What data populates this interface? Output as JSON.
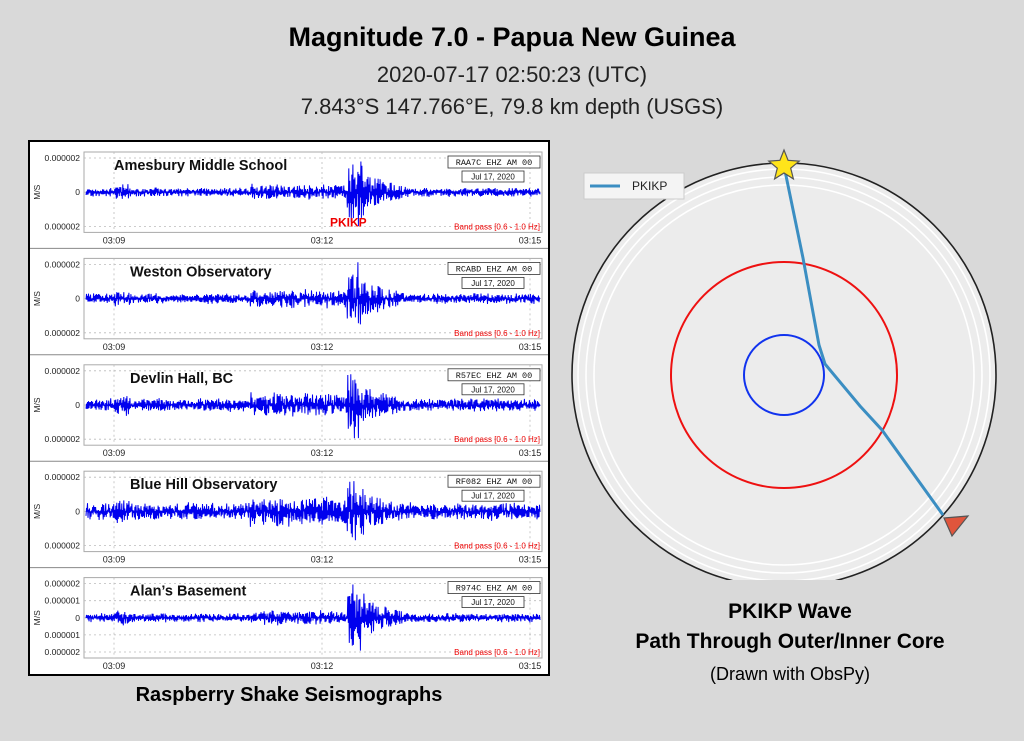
{
  "header": {
    "title": "Magnitude 7.0 - Papua New Guinea",
    "subtitle_time": "2020-07-17 02:50:23 (UTC)",
    "subtitle_location": "7.843°S 147.766°E, 79.8 km depth (USGS)"
  },
  "chart_data": [
    {
      "type": "line",
      "caption": "Raspberry Shake Seismographs",
      "ylabel": "M/S",
      "line_color": "#0000ee",
      "x_ticks": [
        "03:09",
        "03:12",
        "03:15"
      ],
      "date": "Jul 17, 2020",
      "filter": "Band pass [0.6 - 1.0 Hz]",
      "phase_label": "PKIKP",
      "phase_color": "#ee0000",
      "panels": [
        {
          "name": "Amesbury Middle School",
          "channel": "RAA7C EHZ AM 00",
          "y_ticks": [
            "0.000002",
            "0",
            "0.000002"
          ],
          "arrival_amplitude": 1.0,
          "noise": 0.12
        },
        {
          "name": "Weston Observatory",
          "channel": "RCABD EHZ AM 00",
          "y_ticks": [
            "0.000002",
            "0",
            "0.000002"
          ],
          "arrival_amplitude": 0.95,
          "noise": 0.14
        },
        {
          "name": "Devlin Hall, BC",
          "channel": "R57EC EHZ AM 00",
          "y_ticks": [
            "0.000002",
            "0",
            "0.000002"
          ],
          "arrival_amplitude": 1.0,
          "noise": 0.18
        },
        {
          "name": "Blue Hill Observatory",
          "channel": "RF082 EHZ AM 00",
          "y_ticks": [
            "0.000002",
            "0",
            "0.000002"
          ],
          "arrival_amplitude": 0.85,
          "noise": 0.24
        },
        {
          "name": "Alan’s Basement",
          "channel": "R974C EHZ AM 00",
          "y_ticks": [
            "0.000002",
            "0.000001",
            "0",
            "0.000001",
            "0.000002"
          ],
          "arrival_amplitude": 1.0,
          "noise": 0.12
        }
      ]
    },
    {
      "type": "diagram",
      "legend": "PKIKP",
      "path_color": "#3b8ec2",
      "outer_core_color": "#ee1111",
      "inner_core_color": "#1133ee",
      "source_marker": "star",
      "receiver_marker": "triangle"
    }
  ],
  "captions": {
    "wave_line1": "PKIKP Wave",
    "wave_line2": "Path Through Outer/Inner Core",
    "wave_line3": "(Drawn with ObsPy)"
  }
}
